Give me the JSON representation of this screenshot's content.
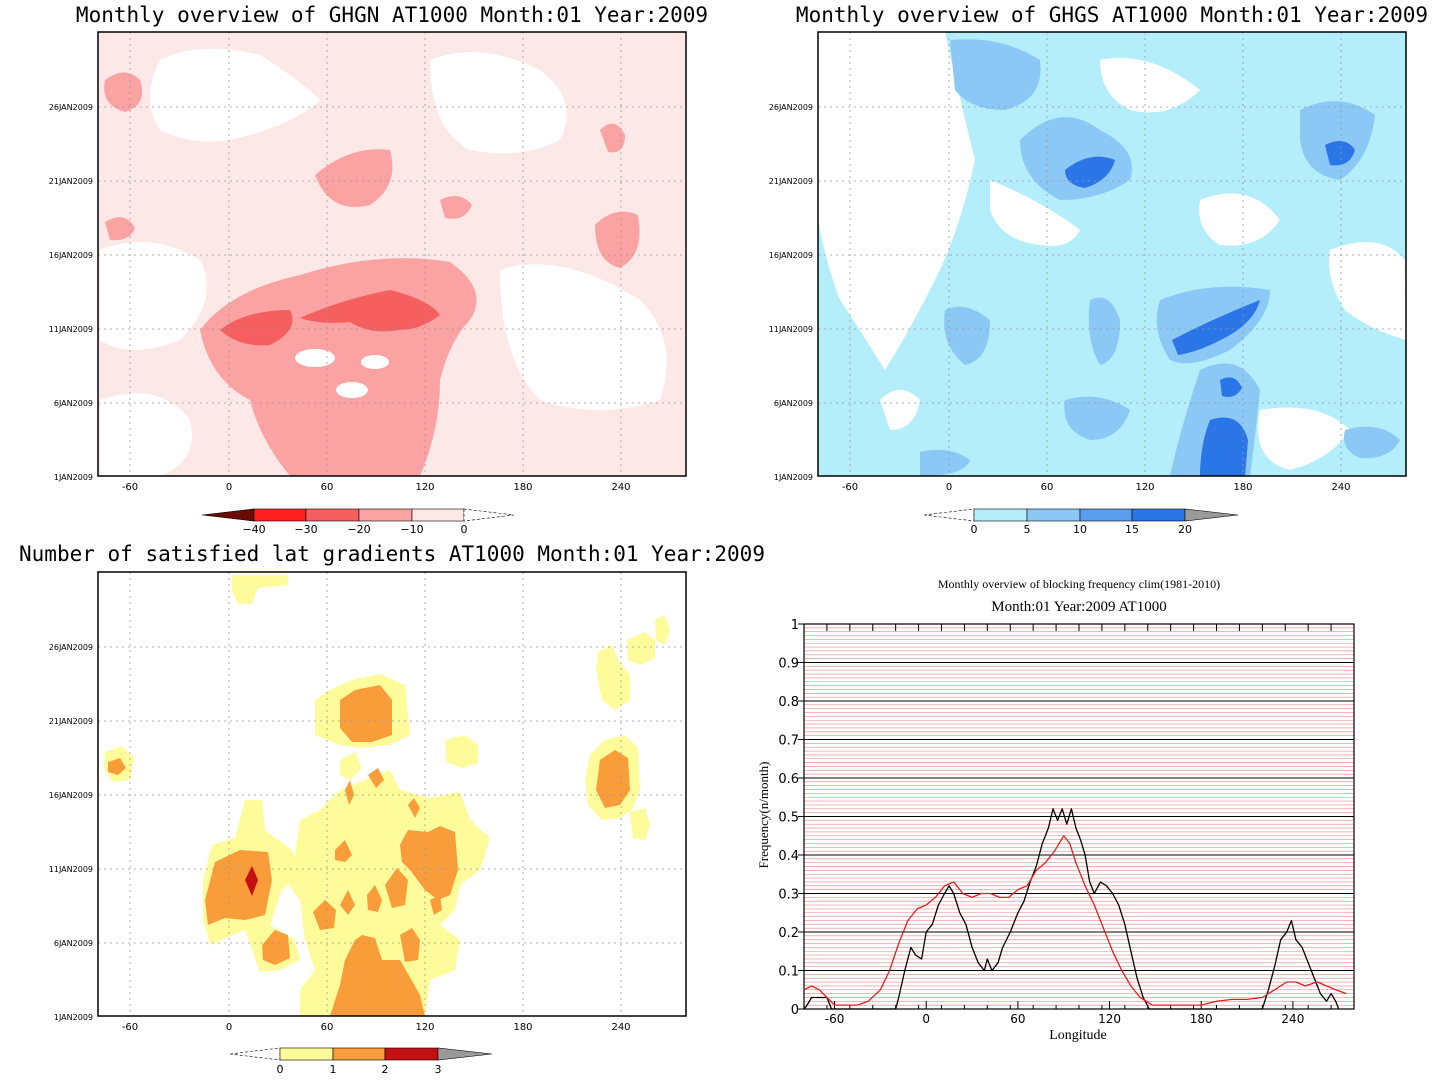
{
  "panels": [
    {
      "id": "ghgn",
      "title": "Monthly overview of GHGN AT1000 Month:01 Year:2009",
      "x_ticks": [
        -60,
        0,
        60,
        120,
        180,
        240
      ],
      "y_ticks": [
        "1JAN2009",
        "6JAN2009",
        "11JAN2009",
        "16JAN2009",
        "21JAN2009",
        "26JAN2009"
      ],
      "colorbar": {
        "labels": [
          "−40",
          "−30",
          "−20",
          "−10",
          "0"
        ],
        "colors": [
          "#6b0a00",
          "#ff1f1f",
          "#f55f5f",
          "#fba3a3",
          "#fde8e8"
        ]
      },
      "levels": {
        "light": "#fde8e8",
        "mid": "#fba3a3",
        "strong": "#f55f5f",
        "white": "#ffffff"
      }
    },
    {
      "id": "ghgs",
      "title": "Monthly overview of GHGS AT1000 Month:01 Year:2009",
      "x_ticks": [
        -60,
        0,
        60,
        120,
        180,
        240
      ],
      "y_ticks": [
        "1JAN2009",
        "6JAN2009",
        "11JAN2009",
        "16JAN2009",
        "21JAN2009",
        "26JAN2009"
      ],
      "colorbar": {
        "labels": [
          "0",
          "5",
          "10",
          "15",
          "20"
        ],
        "colors": [
          "#b4eefa",
          "#8cc8f6",
          "#5a9ef0",
          "#2a76e6",
          "#9a9a9a"
        ]
      },
      "levels": {
        "light": "#b4eefa",
        "mid": "#8cc8f6",
        "strong": "#3a7fe6",
        "white": "#ffffff"
      }
    },
    {
      "id": "gradients",
      "title": "Number of satisfied lat gradients AT1000 Month:01 Year:2009",
      "x_ticks": [
        -60,
        0,
        60,
        120,
        180,
        240
      ],
      "y_ticks": [
        "1JAN2009",
        "6JAN2009",
        "11JAN2009",
        "16JAN2009",
        "21JAN2009",
        "26JAN2009"
      ],
      "colorbar": {
        "labels": [
          "0",
          "1",
          "2",
          "3"
        ],
        "colors": [
          "#fdfb9a",
          "#f99d3a",
          "#c41010",
          "#9a9a9a"
        ]
      },
      "levels": {
        "light": "#fdfb9a",
        "mid": "#f99d3a",
        "strong": "#c41010",
        "white": "#ffffff"
      }
    }
  ],
  "chart_data": {
    "type": "line",
    "title": "Monthly overview of blocking frequency clim(1981-2010)",
    "subtitle": "Month:01 Year:2009  AT1000",
    "xlabel": "Longitude",
    "ylabel": "Frequency(n/month)",
    "xlim": [
      -80,
      280
    ],
    "ylim": [
      0,
      1
    ],
    "x_ticks": [
      -60,
      0,
      60,
      120,
      180,
      240
    ],
    "y_ticks": [
      0,
      0.1,
      0.2,
      0.3,
      0.4,
      0.5,
      0.6,
      0.7,
      0.8,
      0.9,
      1
    ],
    "grid": true,
    "series": [
      {
        "color": "#000000",
        "points": [
          [
            -80,
            0
          ],
          [
            -78,
            0.01
          ],
          [
            -75,
            0.03
          ],
          [
            -70,
            0.03
          ],
          [
            -65,
            0.03
          ],
          [
            -62,
            0
          ],
          [
            -20,
            0
          ],
          [
            -18,
            0.03
          ],
          [
            -14,
            0.1
          ],
          [
            -10,
            0.16
          ],
          [
            -7,
            0.14
          ],
          [
            -3,
            0.13
          ],
          [
            0,
            0.2
          ],
          [
            4,
            0.22
          ],
          [
            8,
            0.27
          ],
          [
            12,
            0.3
          ],
          [
            15,
            0.32
          ],
          [
            18,
            0.3
          ],
          [
            22,
            0.25
          ],
          [
            26,
            0.22
          ],
          [
            30,
            0.16
          ],
          [
            34,
            0.12
          ],
          [
            38,
            0.1
          ],
          [
            40,
            0.13
          ],
          [
            43,
            0.1
          ],
          [
            47,
            0.12
          ],
          [
            50,
            0.16
          ],
          [
            55,
            0.2
          ],
          [
            60,
            0.25
          ],
          [
            64,
            0.28
          ],
          [
            68,
            0.33
          ],
          [
            72,
            0.37
          ],
          [
            76,
            0.43
          ],
          [
            80,
            0.47
          ],
          [
            83,
            0.52
          ],
          [
            86,
            0.49
          ],
          [
            89,
            0.52
          ],
          [
            92,
            0.48
          ],
          [
            95,
            0.52
          ],
          [
            98,
            0.47
          ],
          [
            101,
            0.44
          ],
          [
            104,
            0.4
          ],
          [
            107,
            0.33
          ],
          [
            110,
            0.3
          ],
          [
            114,
            0.33
          ],
          [
            118,
            0.32
          ],
          [
            122,
            0.3
          ],
          [
            126,
            0.27
          ],
          [
            130,
            0.22
          ],
          [
            134,
            0.15
          ],
          [
            138,
            0.08
          ],
          [
            142,
            0.03
          ],
          [
            146,
            0
          ],
          [
            220,
            0
          ],
          [
            224,
            0.05
          ],
          [
            228,
            0.11
          ],
          [
            232,
            0.18
          ],
          [
            236,
            0.2
          ],
          [
            239,
            0.23
          ],
          [
            242,
            0.18
          ],
          [
            246,
            0.16
          ],
          [
            250,
            0.12
          ],
          [
            254,
            0.08
          ],
          [
            258,
            0.04
          ],
          [
            262,
            0.02
          ],
          [
            265,
            0.04
          ],
          [
            268,
            0.02
          ],
          [
            270,
            0
          ]
        ]
      },
      {
        "color": "#e02020",
        "points": [
          [
            -80,
            0.05
          ],
          [
            -75,
            0.06
          ],
          [
            -70,
            0.05
          ],
          [
            -65,
            0.03
          ],
          [
            -60,
            0.01
          ],
          [
            -52,
            0.01
          ],
          [
            -45,
            0.01
          ],
          [
            -38,
            0.02
          ],
          [
            -30,
            0.05
          ],
          [
            -24,
            0.1
          ],
          [
            -18,
            0.17
          ],
          [
            -12,
            0.23
          ],
          [
            -6,
            0.26
          ],
          [
            0,
            0.27
          ],
          [
            6,
            0.29
          ],
          [
            12,
            0.32
          ],
          [
            18,
            0.33
          ],
          [
            24,
            0.3
          ],
          [
            30,
            0.29
          ],
          [
            36,
            0.3
          ],
          [
            42,
            0.3
          ],
          [
            48,
            0.29
          ],
          [
            54,
            0.29
          ],
          [
            60,
            0.31
          ],
          [
            66,
            0.32
          ],
          [
            72,
            0.36
          ],
          [
            78,
            0.38
          ],
          [
            84,
            0.41
          ],
          [
            90,
            0.45
          ],
          [
            94,
            0.43
          ],
          [
            98,
            0.38
          ],
          [
            104,
            0.32
          ],
          [
            110,
            0.27
          ],
          [
            116,
            0.21
          ],
          [
            122,
            0.15
          ],
          [
            128,
            0.1
          ],
          [
            134,
            0.06
          ],
          [
            140,
            0.03
          ],
          [
            148,
            0.01
          ],
          [
            160,
            0.01
          ],
          [
            170,
            0.01
          ],
          [
            180,
            0.01
          ],
          [
            190,
            0.02
          ],
          [
            200,
            0.025
          ],
          [
            210,
            0.025
          ],
          [
            220,
            0.03
          ],
          [
            228,
            0.05
          ],
          [
            236,
            0.07
          ],
          [
            242,
            0.07
          ],
          [
            248,
            0.06
          ],
          [
            256,
            0.07
          ],
          [
            262,
            0.06
          ],
          [
            268,
            0.05
          ],
          [
            275,
            0.04
          ]
        ]
      }
    ]
  }
}
